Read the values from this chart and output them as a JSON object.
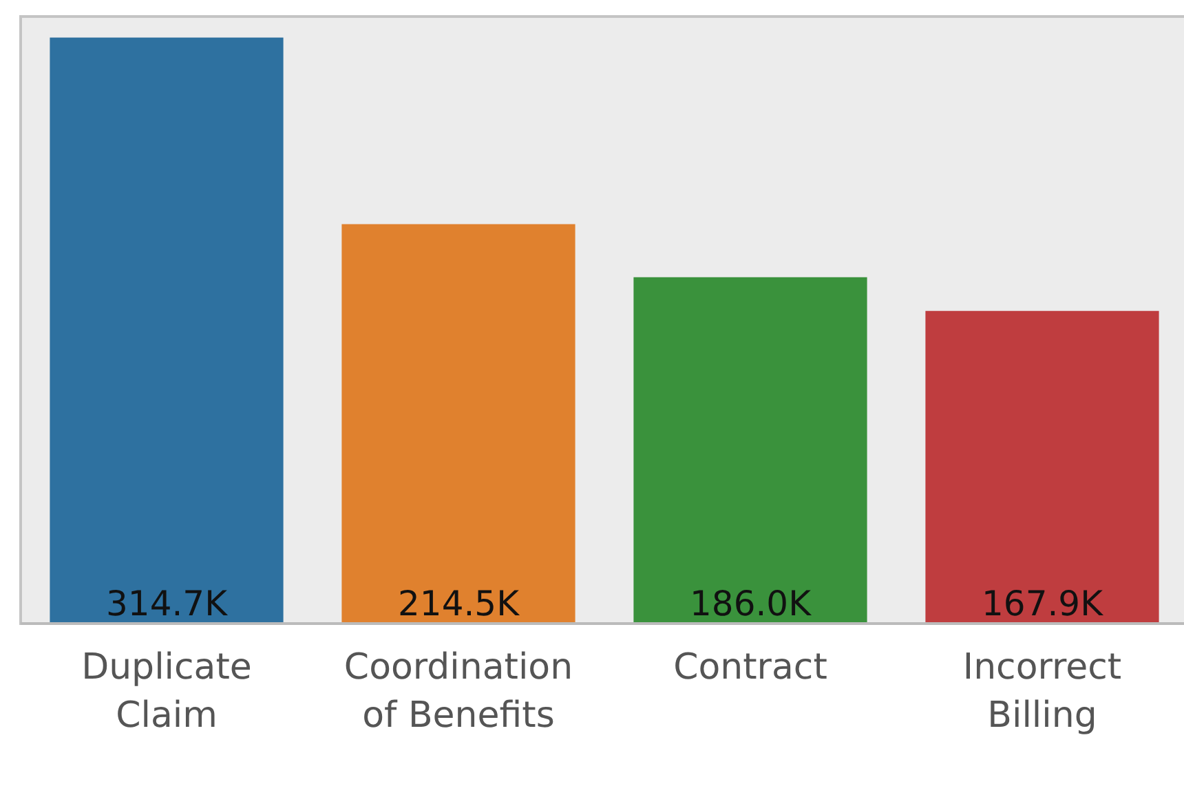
{
  "chart_data": {
    "type": "bar",
    "categories": [
      "Duplicate Claim",
      "Coordination of Benefits",
      "Contract",
      "Incorrect Billing"
    ],
    "values": [
      314700,
      214500,
      186000,
      167900
    ],
    "value_labels": [
      "314.7K",
      "214.5K",
      "186.0K",
      "167.9K"
    ],
    "colors": [
      "#2e71a0",
      "#e0812e",
      "#3a923c",
      "#bf3d3f"
    ],
    "ylim": [
      0,
      326000
    ],
    "tick_labels": "x"
  }
}
